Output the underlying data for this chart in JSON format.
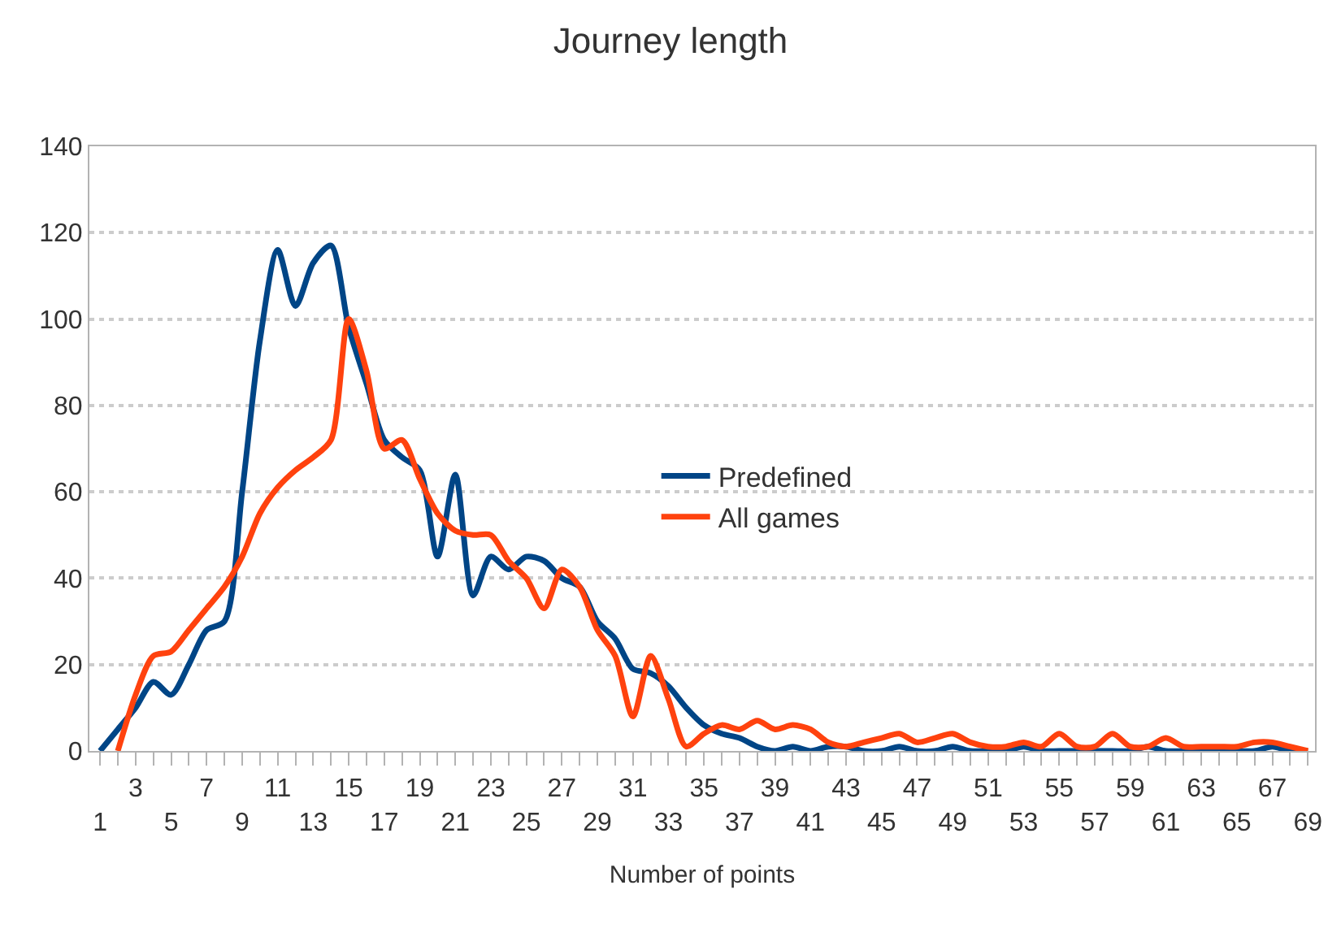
{
  "chart_data": {
    "type": "line",
    "title": "Journey length",
    "xlabel": "Number of points",
    "categories": [
      "1",
      null,
      "3",
      null,
      "5",
      null,
      "7",
      null,
      "9",
      null,
      "11",
      null,
      "13",
      null,
      "15",
      null,
      "17",
      null,
      "19",
      null,
      "21",
      null,
      "23",
      null,
      "25",
      null,
      "27",
      null,
      "29",
      null,
      "31",
      null,
      "33",
      null,
      "35",
      null,
      "37",
      null,
      "39",
      null,
      "41",
      null,
      "43",
      null,
      "45",
      null,
      "47",
      null,
      "49",
      null,
      "51",
      null,
      "53",
      null,
      "55",
      null,
      "57",
      null,
      "59",
      null,
      "61",
      null,
      "63",
      null,
      "65",
      null,
      "67",
      null,
      "69"
    ],
    "series": [
      {
        "name": "Predefined",
        "color": "#004586",
        "values": [
          0,
          5,
          10,
          16,
          13,
          20,
          28,
          30,
          60,
          95,
          116,
          103,
          113,
          117,
          98,
          85,
          72,
          68,
          65,
          45,
          64,
          36,
          45,
          42,
          45,
          44,
          40,
          38,
          30,
          26,
          19,
          18,
          15,
          10,
          6,
          4,
          3,
          1,
          0,
          1,
          0,
          1,
          1,
          0,
          0,
          1,
          0,
          0,
          1,
          0,
          0,
          0,
          1,
          0,
          0,
          0,
          0,
          0,
          0,
          1,
          0,
          0,
          0,
          0,
          0,
          0,
          1,
          0,
          0
        ]
      },
      {
        "name": "All games",
        "color": "#ff420e",
        "values": [
          null,
          0,
          13,
          22,
          23,
          28,
          33,
          38,
          45,
          55,
          61,
          65,
          68,
          72,
          100,
          88,
          70,
          72,
          63,
          55,
          51,
          50,
          50,
          44,
          40,
          33,
          42,
          38,
          28,
          22,
          8,
          22,
          12,
          1,
          4,
          6,
          5,
          7,
          5,
          6,
          5,
          2,
          1,
          2,
          3,
          4,
          2,
          3,
          4,
          2,
          1,
          1,
          2,
          1,
          4,
          1,
          1,
          4,
          1,
          1,
          3,
          1,
          1,
          1,
          1,
          2,
          2,
          1,
          0
        ]
      }
    ],
    "ylim": [
      0,
      140
    ],
    "yticks": [
      0,
      20,
      40,
      60,
      80,
      100,
      120,
      140
    ],
    "grid": "y",
    "legend": "center",
    "marker": "none",
    "line_style": "solid"
  }
}
